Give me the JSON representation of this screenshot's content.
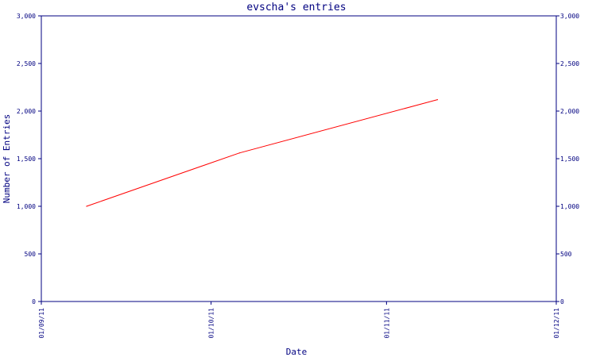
{
  "chart_data": {
    "type": "line",
    "title": "evscha's entries",
    "xlabel": "Date",
    "ylabel": "Number of Entries",
    "x_tick_labels": [
      "01/09/11",
      "01/10/11",
      "01/11/11",
      "01/12/11"
    ],
    "x_ticks": [
      "2011-09-01",
      "2011-10-01",
      "2011-11-01",
      "2011-12-01"
    ],
    "xlim": [
      "2011-09-01",
      "2011-12-01"
    ],
    "y_tick_labels": [
      "0",
      "500",
      "1,000",
      "1,500",
      "2,000",
      "2,500",
      "3,000"
    ],
    "y_ticks": [
      0,
      500,
      1000,
      1500,
      2000,
      2500,
      3000
    ],
    "ylim": [
      0,
      3000
    ],
    "grid": false,
    "series": [
      {
        "color": "#ff0000",
        "x": [
          "2011-09-09",
          "2011-10-06",
          "2011-11-10"
        ],
        "y": [
          1000,
          1560,
          2120
        ]
      }
    ],
    "colors": {
      "axis": "#000080",
      "text": "#000080",
      "line": "#ff0000",
      "background": "#ffffff"
    }
  }
}
